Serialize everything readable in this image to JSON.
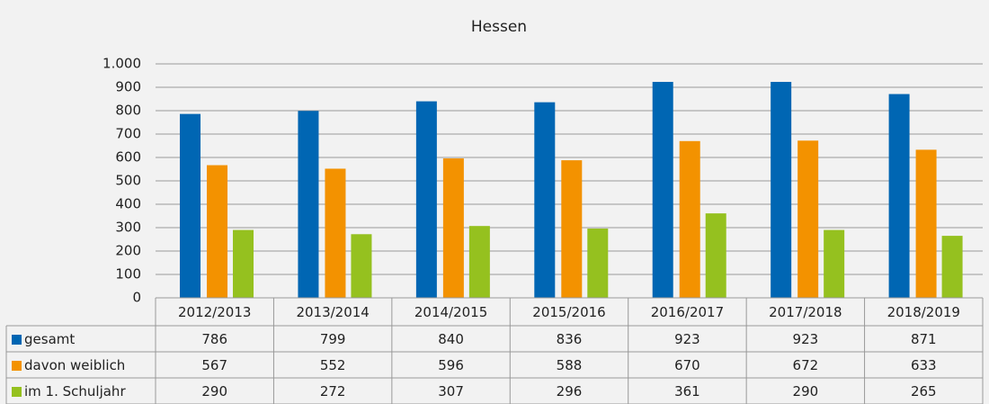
{
  "chart_data": {
    "type": "bar",
    "title": "Hessen",
    "categories": [
      "2012/2013",
      "2013/2014",
      "2014/2015",
      "2015/2016",
      "2016/2017",
      "2017/2018",
      "2018/2019"
    ],
    "series": [
      {
        "name": "gesamt",
        "color": "#0066b3",
        "values": [
          786,
          799,
          840,
          836,
          923,
          923,
          871
        ]
      },
      {
        "name": "davon weiblich",
        "color": "#f39200",
        "values": [
          567,
          552,
          596,
          588,
          670,
          672,
          633
        ]
      },
      {
        "name": "im 1. Schuljahr",
        "color": "#95c11f",
        "values": [
          290,
          272,
          307,
          296,
          361,
          290,
          265
        ]
      }
    ],
    "ylim": [
      0,
      1000
    ],
    "yticks": [
      0,
      100,
      200,
      300,
      400,
      500,
      600,
      700,
      800,
      900,
      {
        "value": 1000,
        "label": "1.000"
      }
    ],
    "grid": true
  }
}
